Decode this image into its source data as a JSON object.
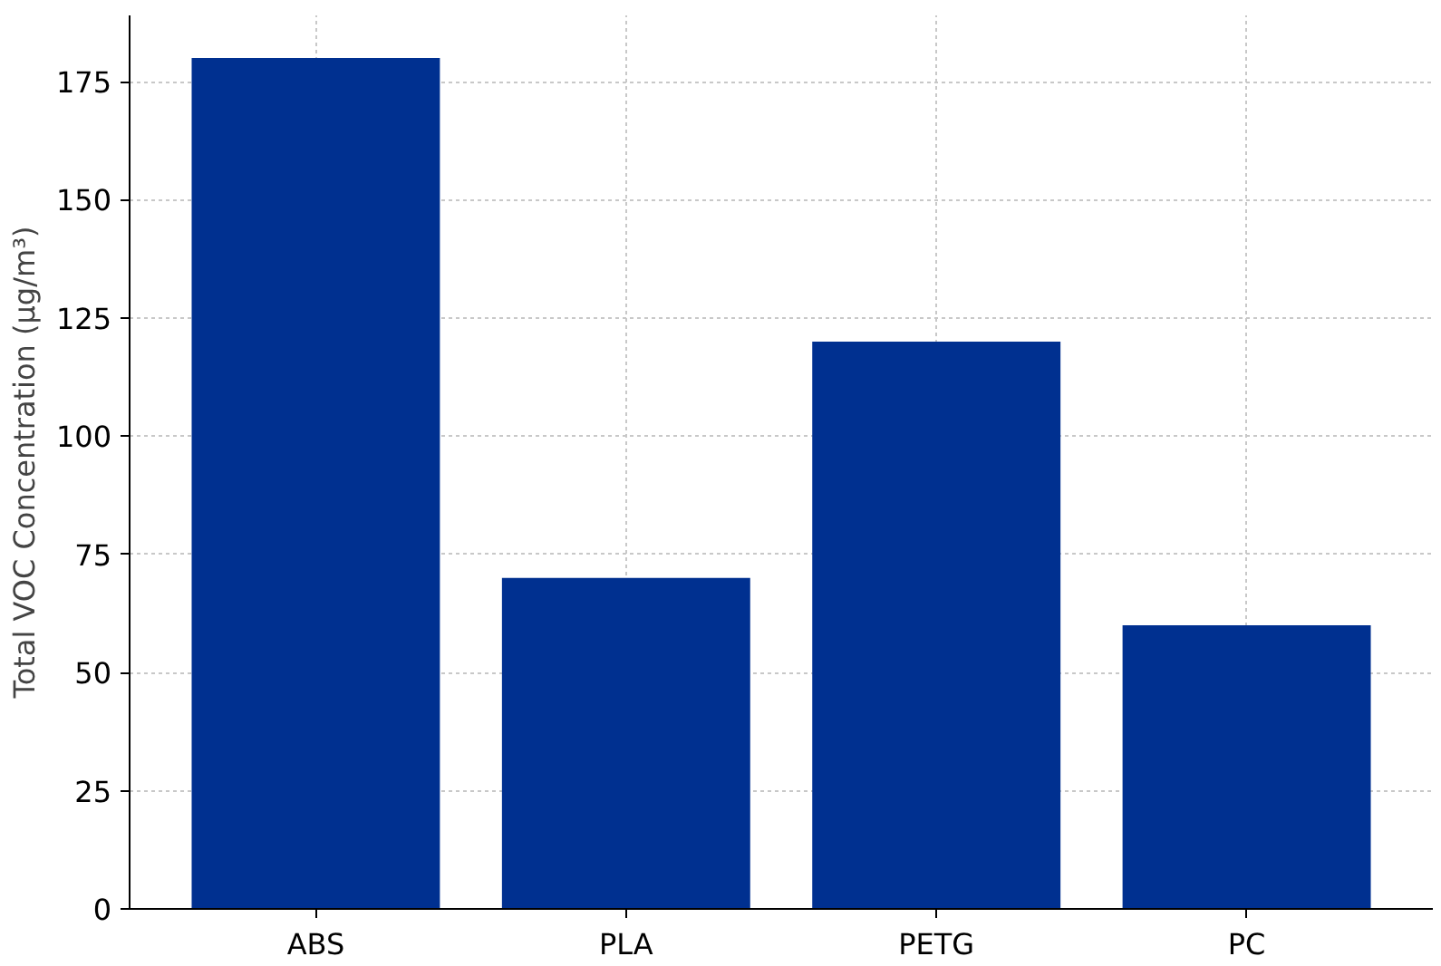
{
  "chart_data": {
    "type": "bar",
    "ylabel": "Total VOC Concentration (µg/m³)",
    "categories": [
      "ABS",
      "PLA",
      "PETG",
      "PC"
    ],
    "values": [
      180,
      70,
      120,
      60
    ],
    "color": "#003090",
    "ylim": [
      0,
      189
    ],
    "yticks": [
      0,
      25,
      50,
      75,
      100,
      125,
      150,
      175
    ],
    "grid": true
  }
}
